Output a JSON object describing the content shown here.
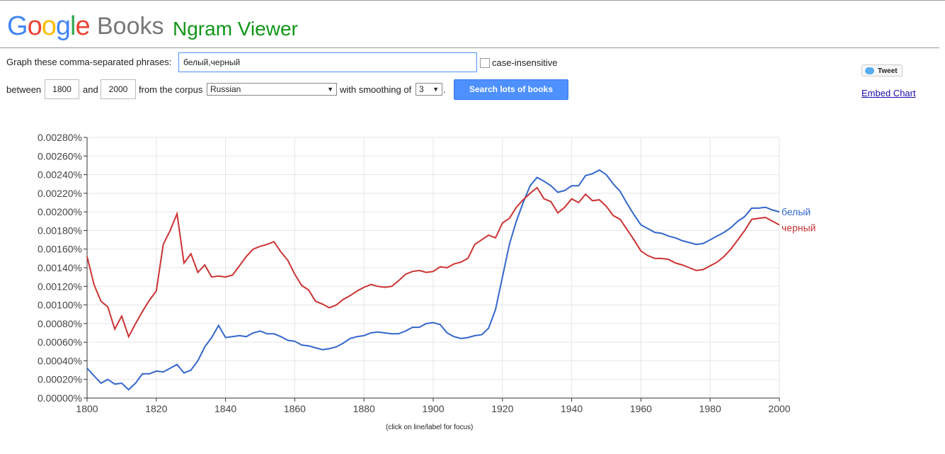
{
  "header": {
    "logo": "Google",
    "books": "Books",
    "app": "Ngram Viewer"
  },
  "form": {
    "phrases_label": "Graph these comma-separated phrases:",
    "phrases": "белый,черный",
    "case_insensitive": "case-insensitive",
    "between": "between",
    "start": "1800",
    "and": "and",
    "end": "2000",
    "corpus_label": "from the corpus",
    "corpus": "Russian",
    "smoothing_label": "with smoothing of",
    "smoothing": "3",
    "period": ".",
    "search": "Search lots of books"
  },
  "side": {
    "tweet": "Tweet",
    "embed": "Embed Chart"
  },
  "footnote": "(click on line/label for focus)",
  "chart_data": {
    "type": "line",
    "grid": true,
    "x": [
      1800,
      1802,
      1804,
      1806,
      1808,
      1810,
      1812,
      1814,
      1816,
      1818,
      1820,
      1822,
      1824,
      1826,
      1828,
      1830,
      1832,
      1834,
      1836,
      1838,
      1840,
      1842,
      1844,
      1846,
      1848,
      1850,
      1852,
      1854,
      1856,
      1858,
      1860,
      1862,
      1864,
      1866,
      1868,
      1870,
      1872,
      1874,
      1876,
      1878,
      1880,
      1882,
      1884,
      1886,
      1888,
      1890,
      1892,
      1894,
      1896,
      1898,
      1900,
      1902,
      1904,
      1906,
      1908,
      1910,
      1912,
      1914,
      1916,
      1918,
      1920,
      1922,
      1924,
      1926,
      1928,
      1930,
      1932,
      1934,
      1936,
      1938,
      1940,
      1942,
      1944,
      1946,
      1948,
      1950,
      1952,
      1954,
      1956,
      1958,
      1960,
      1962,
      1964,
      1966,
      1968,
      1970,
      1972,
      1974,
      1976,
      1978,
      1980,
      1982,
      1984,
      1986,
      1988,
      1990,
      1992,
      1994,
      1996,
      1998,
      2000
    ],
    "series": [
      {
        "name": "белый",
        "color": "#3366cc",
        "values": [
          0.00032,
          0.00024,
          0.00016,
          0.0002,
          0.00015,
          0.00016,
          9e-05,
          0.00016,
          0.00026,
          0.00026,
          0.00029,
          0.00028,
          0.00032,
          0.00036,
          0.00027,
          0.0003,
          0.0004,
          0.00055,
          0.00065,
          0.00078,
          0.00065,
          0.00066,
          0.00067,
          0.00066,
          0.0007,
          0.00072,
          0.00069,
          0.00069,
          0.00066,
          0.00062,
          0.00061,
          0.00057,
          0.00056,
          0.00054,
          0.00052,
          0.00053,
          0.00055,
          0.00059,
          0.00064,
          0.00066,
          0.00067,
          0.0007,
          0.00071,
          0.0007,
          0.00069,
          0.00069,
          0.00072,
          0.00076,
          0.00076,
          0.0008,
          0.00081,
          0.00079,
          0.0007,
          0.00066,
          0.00064,
          0.00065,
          0.00067,
          0.00068,
          0.00075,
          0.00095,
          0.0013,
          0.00165,
          0.0019,
          0.0021,
          0.00228,
          0.00237,
          0.00233,
          0.00228,
          0.00221,
          0.00223,
          0.00228,
          0.00228,
          0.00239,
          0.00241,
          0.00245,
          0.0024,
          0.0023,
          0.00222,
          0.00209,
          0.00197,
          0.00186,
          0.00182,
          0.00178,
          0.00177,
          0.00174,
          0.00172,
          0.00169,
          0.00167,
          0.00165,
          0.00166,
          0.0017,
          0.00174,
          0.00178,
          0.00183,
          0.0019,
          0.00195,
          0.00204,
          0.00204,
          0.00205,
          0.00202,
          0.002
        ]
      },
      {
        "name": "черный",
        "color": "#cc3333",
        "values": [
          0.00152,
          0.00122,
          0.00104,
          0.00098,
          0.00074,
          0.00088,
          0.00066,
          0.0008,
          0.00093,
          0.00105,
          0.00115,
          0.00165,
          0.0018,
          0.00198,
          0.00145,
          0.00155,
          0.00135,
          0.00143,
          0.0013,
          0.00131,
          0.0013,
          0.00132,
          0.00142,
          0.00152,
          0.0016,
          0.00163,
          0.00165,
          0.00168,
          0.00157,
          0.00148,
          0.00133,
          0.00121,
          0.00116,
          0.00104,
          0.00101,
          0.00097,
          0.001,
          0.00106,
          0.0011,
          0.00115,
          0.00119,
          0.00122,
          0.0012,
          0.00119,
          0.0012,
          0.00126,
          0.00133,
          0.00136,
          0.00137,
          0.00135,
          0.00136,
          0.00141,
          0.0014,
          0.00144,
          0.00146,
          0.0015,
          0.00165,
          0.0017,
          0.00175,
          0.00172,
          0.00188,
          0.00193,
          0.00205,
          0.00213,
          0.0022,
          0.00226,
          0.00214,
          0.00211,
          0.00199,
          0.00205,
          0.00214,
          0.0021,
          0.00219,
          0.00212,
          0.00213,
          0.00206,
          0.00196,
          0.00192,
          0.00181,
          0.0017,
          0.00158,
          0.00153,
          0.0015,
          0.0015,
          0.00149,
          0.00145,
          0.00143,
          0.0014,
          0.00137,
          0.00138,
          0.00142,
          0.00146,
          0.00152,
          0.0016,
          0.0017,
          0.0018,
          0.00192,
          0.00193,
          0.00194,
          0.0019,
          0.00186
        ]
      }
    ],
    "xlim": [
      1800,
      2000
    ],
    "xticks": [
      1800,
      1820,
      1840,
      1860,
      1880,
      1900,
      1920,
      1940,
      1960,
      1980,
      2000
    ],
    "ylim": [
      0,
      0.0028
    ],
    "yticks": [
      {
        "value": 0,
        "label": "0.00000%"
      },
      {
        "value": 0.0002,
        "label": "0.00020%"
      },
      {
        "value": 0.0004,
        "label": "0.00040%"
      },
      {
        "value": 0.0006,
        "label": "0.00060%"
      },
      {
        "value": 0.0008,
        "label": "0.00080%"
      },
      {
        "value": 0.001,
        "label": "0.00100%"
      },
      {
        "value": 0.0012,
        "label": "0.00120%"
      },
      {
        "value": 0.0014,
        "label": "0.00140%"
      },
      {
        "value": 0.0016,
        "label": "0.00160%"
      },
      {
        "value": 0.0018,
        "label": "0.00180%"
      },
      {
        "value": 0.002,
        "label": "0.00200%"
      },
      {
        "value": 0.0022,
        "label": "0.00220%"
      },
      {
        "value": 0.0024,
        "label": "0.00240%"
      },
      {
        "value": 0.0026,
        "label": "0.00260%"
      },
      {
        "value": 0.0028,
        "label": "0.00280%"
      }
    ]
  }
}
